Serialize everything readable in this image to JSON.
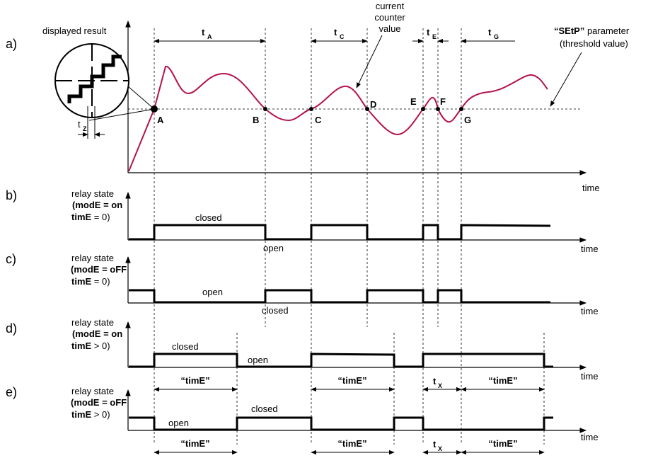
{
  "panels": {
    "a": "a)",
    "b": "b)",
    "c": "c)",
    "d": "d)",
    "e": "e)"
  },
  "axis": {
    "y_label": "displayed result",
    "x_label": "time"
  },
  "annotations": {
    "current_counter": [
      "current",
      "counter",
      "value"
    ],
    "setp_bold": "“SEtP”",
    "setp_rest": " parameter",
    "threshold": "(threshold value)"
  },
  "intervals": {
    "tA": {
      "main": "t",
      "sub": "A"
    },
    "tC": {
      "main": "t",
      "sub": "C"
    },
    "tE": {
      "main": "t",
      "sub": "E"
    },
    "tG": {
      "main": "t",
      "sub": "G"
    },
    "tZ": {
      "main": "t",
      "sub": "Z"
    },
    "tX": {
      "main": "t",
      "sub": "X"
    }
  },
  "points": [
    "A",
    "B",
    "C",
    "D",
    "E",
    "F",
    "G"
  ],
  "relays": {
    "b": {
      "l1": "relay state",
      "l2_pre": "(",
      "l2_bold": "modE = on",
      "l3_bold": "timE",
      "l3_rest": "  =  0)",
      "closed": "closed",
      "open": "open"
    },
    "c": {
      "l1": "relay state",
      "l2_pre": "(",
      "l2_bold": "modE = oFF",
      "l3_bold": "timE",
      "l3_rest": "  =  0)",
      "open": "open",
      "closed": "closed"
    },
    "d": {
      "l1": "relay state",
      "l2_pre": "(",
      "l2_bold": "modE = on",
      "l3_bold": "timE",
      "l3_rest": "  >  0)",
      "closed": "closed",
      "open": "open"
    },
    "e": {
      "l1": "relay state",
      "l2_pre": "(",
      "l2_bold": "modE = oFF",
      "l3_bold": "timE",
      "l3_rest": "  >  0)",
      "open": "open",
      "closed": "closed"
    }
  },
  "time_labels": {
    "timE": "“timE”"
  }
}
